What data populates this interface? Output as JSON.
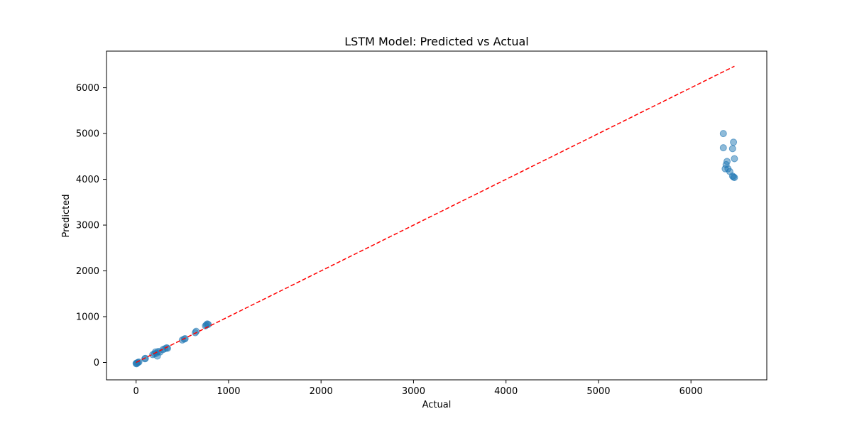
{
  "chart_data": {
    "type": "scatter",
    "title": "LSTM Model: Predicted vs Actual",
    "xlabel": "Actual",
    "ylabel": "Predicted",
    "xlim": [
      -320,
      6820
    ],
    "ylim": [
      -380,
      6800
    ],
    "xticks": [
      0,
      1000,
      2000,
      3000,
      4000,
      5000,
      6000
    ],
    "yticks": [
      0,
      1000,
      2000,
      3000,
      4000,
      5000,
      6000
    ],
    "grid": false,
    "colors": {
      "points": "#1f77b4",
      "reference_line": "#ff0000"
    },
    "reference_line": {
      "style": "dashed",
      "x": [
        0,
        6470
      ],
      "y": [
        0,
        6470
      ]
    },
    "points": [
      {
        "x": 0,
        "y": -20
      },
      {
        "x": 10,
        "y": -10
      },
      {
        "x": 20,
        "y": 0
      },
      {
        "x": 30,
        "y": 10
      },
      {
        "x": 5,
        "y": -30
      },
      {
        "x": 95,
        "y": 80
      },
      {
        "x": 100,
        "y": 90
      },
      {
        "x": 180,
        "y": 170
      },
      {
        "x": 200,
        "y": 190
      },
      {
        "x": 210,
        "y": 230
      },
      {
        "x": 220,
        "y": 200
      },
      {
        "x": 230,
        "y": 140
      },
      {
        "x": 240,
        "y": 240
      },
      {
        "x": 260,
        "y": 230
      },
      {
        "x": 290,
        "y": 280
      },
      {
        "x": 310,
        "y": 300
      },
      {
        "x": 330,
        "y": 320
      },
      {
        "x": 340,
        "y": 310
      },
      {
        "x": 500,
        "y": 490
      },
      {
        "x": 520,
        "y": 510
      },
      {
        "x": 530,
        "y": 520
      },
      {
        "x": 640,
        "y": 650
      },
      {
        "x": 650,
        "y": 680
      },
      {
        "x": 750,
        "y": 800
      },
      {
        "x": 760,
        "y": 820
      },
      {
        "x": 770,
        "y": 840
      },
      {
        "x": 780,
        "y": 830
      },
      {
        "x": 6350,
        "y": 5000
      },
      {
        "x": 6350,
        "y": 4690
      },
      {
        "x": 6460,
        "y": 4810
      },
      {
        "x": 6450,
        "y": 4670
      },
      {
        "x": 6470,
        "y": 4450
      },
      {
        "x": 6390,
        "y": 4390
      },
      {
        "x": 6380,
        "y": 4320
      },
      {
        "x": 6370,
        "y": 4230
      },
      {
        "x": 6400,
        "y": 4230
      },
      {
        "x": 6420,
        "y": 4170
      },
      {
        "x": 6450,
        "y": 4070
      },
      {
        "x": 6460,
        "y": 4050
      },
      {
        "x": 6470,
        "y": 4040
      }
    ]
  }
}
